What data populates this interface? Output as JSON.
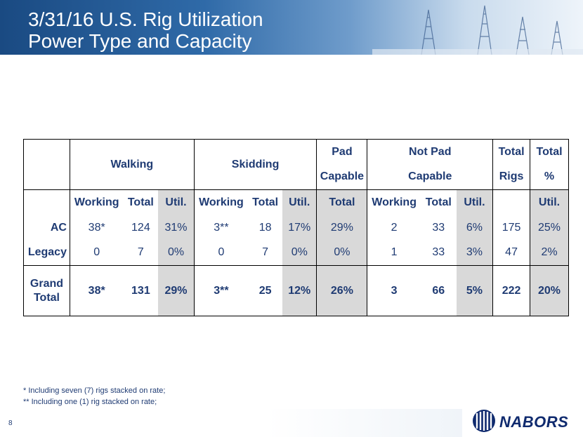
{
  "slide": {
    "title_line1": "3/31/16 U.S. Rig Utilization",
    "title_line2": "Power Type and Capacity",
    "page_number": "8",
    "logo_text": "NABORS"
  },
  "table": {
    "group_headers": {
      "walking": "Walking",
      "skidding": "Skidding",
      "pad_line1": "Pad",
      "pad_line2": "Capable",
      "notpad_line1": "Not Pad",
      "notpad_line2": "Capable",
      "totalrigs_line1": "Total",
      "totalrigs_line2": "Rigs",
      "totalpct_line1": "Total",
      "totalpct_line2": "%"
    },
    "sub_headers": {
      "w_working": "Working",
      "w_total": "Total",
      "w_util": "Util.",
      "s_working": "Working",
      "s_total": "Total",
      "s_util": "Util.",
      "pad_total": "Total",
      "np_working": "Working",
      "np_total": "Total",
      "np_util": "Util.",
      "pct_util": "Util."
    },
    "rows": [
      {
        "label": "AC",
        "w_working": "38*",
        "w_total": "124",
        "w_util": "31%",
        "s_working": "3**",
        "s_total": "18",
        "s_util": "17%",
        "pad": "29%",
        "np_working": "2",
        "np_total": "33",
        "np_util": "6%",
        "total_rigs": "175",
        "total_pct": "25%"
      },
      {
        "label": "Legacy",
        "w_working": "0",
        "w_total": "7",
        "w_util": "0%",
        "s_working": "0",
        "s_total": "7",
        "s_util": "0%",
        "pad": "0%",
        "np_working": "1",
        "np_total": "33",
        "np_util": "3%",
        "total_rigs": "47",
        "total_pct": "2%"
      }
    ],
    "grand_total": {
      "label_line1": "Grand",
      "label_line2": "Total",
      "w_working": "38*",
      "w_total": "131",
      "w_util": "29%",
      "s_working": "3**",
      "s_total": "25",
      "s_util": "12%",
      "pad": "26%",
      "np_working": "3",
      "np_total": "66",
      "np_util": "5%",
      "total_rigs": "222",
      "total_pct": "20%"
    }
  },
  "footnotes": {
    "note1": "* Including seven (7) rigs stacked on rate;",
    "note2": "** Including one (1) rig stacked on rate;"
  },
  "colors": {
    "text": "#1f3b73",
    "shade": "#d9d9d9",
    "header_dark": "#1a4a82",
    "logo": "#0f2a6e"
  }
}
